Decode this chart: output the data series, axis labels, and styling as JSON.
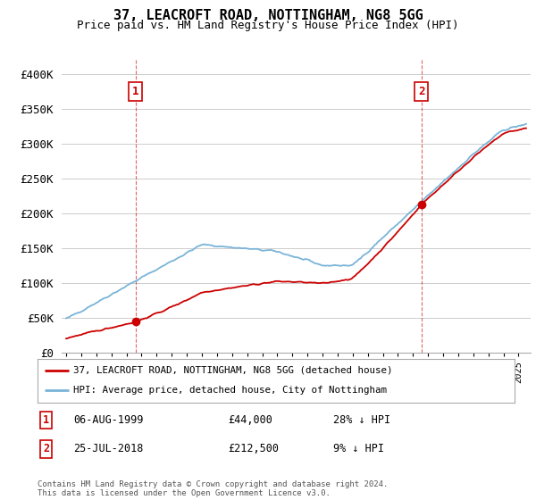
{
  "title": "37, LEACROFT ROAD, NOTTINGHAM, NG8 5GG",
  "subtitle": "Price paid vs. HM Land Registry's House Price Index (HPI)",
  "ylabel_ticks": [
    "£0",
    "£50K",
    "£100K",
    "£150K",
    "£200K",
    "£250K",
    "£300K",
    "£350K",
    "£400K"
  ],
  "ytick_values": [
    0,
    50000,
    100000,
    150000,
    200000,
    250000,
    300000,
    350000,
    400000
  ],
  "ylim": [
    0,
    420000
  ],
  "xlim_start": 1994.7,
  "xlim_end": 2025.8,
  "sale1_date": 1999.6,
  "sale1_price": 44000,
  "sale1_label": "1",
  "sale2_date": 2018.55,
  "sale2_price": 212500,
  "sale2_label": "2",
  "legend_line1": "37, LEACROFT ROAD, NOTTINGHAM, NG8 5GG (detached house)",
  "legend_line2": "HPI: Average price, detached house, City of Nottingham",
  "note1_label": "1",
  "note1_date": "06-AUG-1999",
  "note1_price": "£44,000",
  "note1_hpi": "28% ↓ HPI",
  "note2_label": "2",
  "note2_date": "25-JUL-2018",
  "note2_price": "£212,500",
  "note2_hpi": "9% ↓ HPI",
  "footnote": "Contains HM Land Registry data © Crown copyright and database right 2024.\nThis data is licensed under the Open Government Licence v3.0.",
  "hpi_color": "#7ab4d8",
  "sale_color": "#cc0000",
  "marker_color": "#cc0000",
  "grid_color": "#cccccc",
  "bg_color": "#ffffff",
  "annotation_color": "#cc0000"
}
